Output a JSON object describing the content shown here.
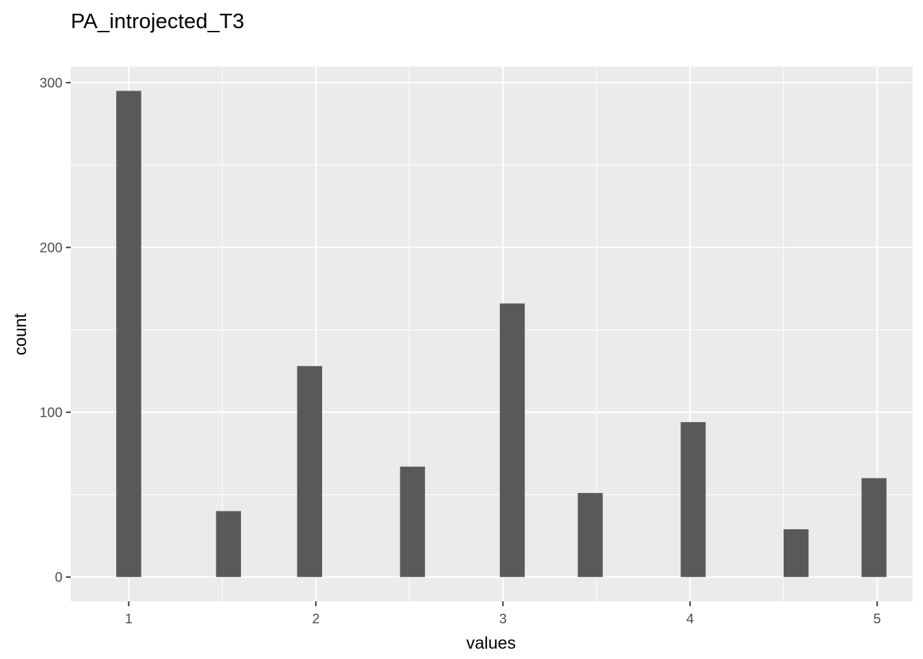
{
  "chart_data": {
    "type": "bar",
    "title": "PA_introjected_T3",
    "xlabel": "values",
    "ylabel": "count",
    "x": [
      1.0,
      1.5333,
      1.9667,
      2.5167,
      3.05,
      3.4667,
      4.0167,
      4.5667,
      4.9833
    ],
    "values": [
      295,
      40,
      128,
      67,
      166,
      51,
      94,
      29,
      60
    ],
    "bar_width": 0.1333,
    "xlim": [
      0.69,
      5.19
    ],
    "ylim": [
      -14.75,
      309.75
    ],
    "x_ticks": [
      "1",
      "2",
      "3",
      "4",
      "5"
    ],
    "y_ticks": [
      "0",
      "100",
      "200",
      "300"
    ],
    "grid": true,
    "colors": {
      "panel": "#ebebeb",
      "grid": "#ffffff",
      "bar": "#595959",
      "tick": "#333333",
      "tick_label": "#4d4d4d"
    }
  }
}
